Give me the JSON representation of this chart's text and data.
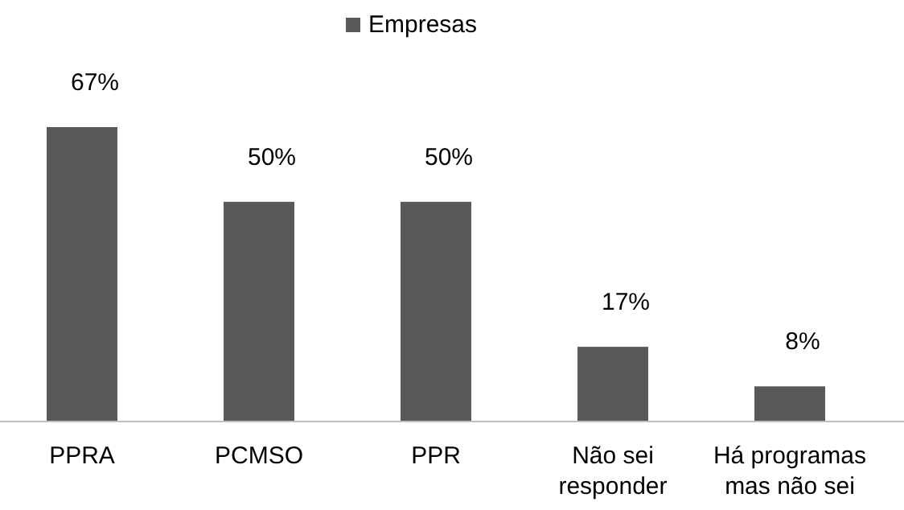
{
  "chart_data": {
    "type": "bar",
    "categories": [
      "PPRA",
      "PCMSO",
      "PPR",
      "Não sei responder",
      "Há programas mas não sei"
    ],
    "series": [
      {
        "name": "Empresas",
        "color": "#595959",
        "values": [
          67,
          50,
          50,
          17,
          8
        ],
        "value_labels": [
          "67%",
          "50%",
          "50%",
          "17%",
          "8%"
        ]
      }
    ],
    "legend": "top"
  }
}
